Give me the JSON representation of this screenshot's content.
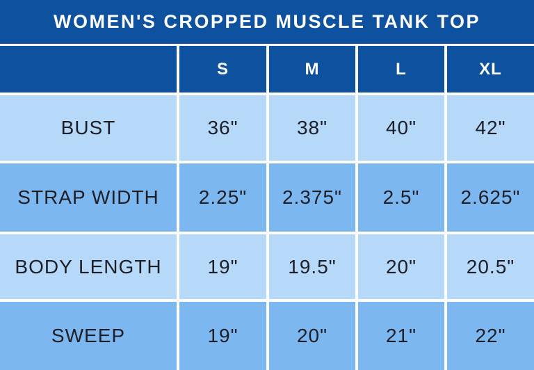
{
  "chart_data": {
    "type": "table",
    "title": "WOMEN'S CROPPED MUSCLE TANK TOP",
    "column_headers": [
      "",
      "S",
      "M",
      "L",
      "XL"
    ],
    "rows": [
      {
        "label": "BUST",
        "values": [
          "36\"",
          "38\"",
          "40\"",
          "42\""
        ]
      },
      {
        "label": "STRAP WIDTH",
        "values": [
          "2.25\"",
          "2.375\"",
          "2.5\"",
          "2.625\""
        ]
      },
      {
        "label": "BODY LENGTH",
        "values": [
          "19\"",
          "19.5\"",
          "20\"",
          "20.5\""
        ]
      },
      {
        "label": "SWEEP",
        "values": [
          "19\"",
          "20\"",
          "21\"",
          "22\""
        ]
      }
    ]
  },
  "colors": {
    "header_bg": "#0E529F",
    "header_text": "#FFFFFF",
    "row_light": "#B6D8F9",
    "row_medium": "#7DB7F0",
    "grid": "#FFFFFF",
    "cell_text": "#1E1E26"
  }
}
